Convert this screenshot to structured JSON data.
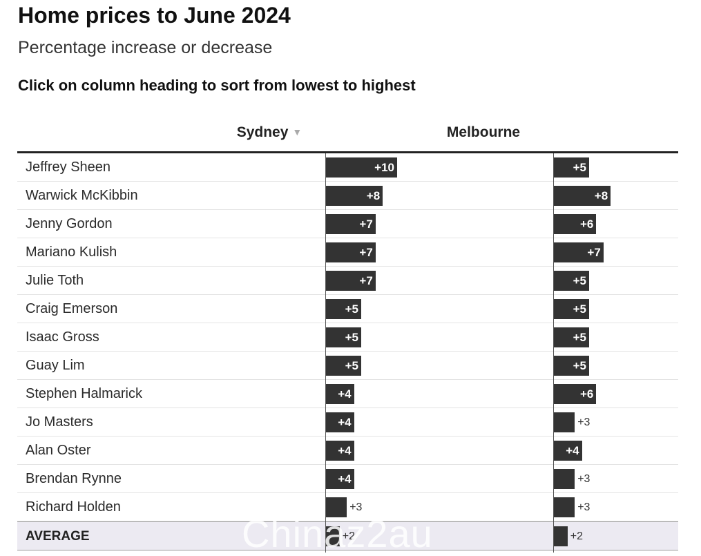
{
  "title": "Home prices to June 2024",
  "subtitle": "Percentage increase or decrease",
  "instruction": "Click on column heading to sort from lowest to highest",
  "columns": {
    "sydney": "Sydney",
    "melbourne": "Melbourne"
  },
  "watermark": "Chinaz2au",
  "chart_data": {
    "type": "table",
    "title": "Home prices to June 2024",
    "subtitle": "Percentage increase or decrease",
    "sorted_by": "Sydney",
    "columns": [
      "Sydney",
      "Melbourne"
    ],
    "rows": [
      {
        "name": "Jeffrey Sheen",
        "sydney": 10,
        "melbourne": 5,
        "sydney_label": "+10",
        "melbourne_label": "+5"
      },
      {
        "name": "Warwick McKibbin",
        "sydney": 8,
        "melbourne": 8,
        "sydney_label": "+8",
        "melbourne_label": "+8"
      },
      {
        "name": "Jenny Gordon",
        "sydney": 7,
        "melbourne": 6,
        "sydney_label": "+7",
        "melbourne_label": "+6"
      },
      {
        "name": "Mariano Kulish",
        "sydney": 7,
        "melbourne": 7,
        "sydney_label": "+7",
        "melbourne_label": "+7"
      },
      {
        "name": "Julie Toth",
        "sydney": 7,
        "melbourne": 5,
        "sydney_label": "+7",
        "melbourne_label": "+5"
      },
      {
        "name": "Craig Emerson",
        "sydney": 5,
        "melbourne": 5,
        "sydney_label": "+5",
        "melbourne_label": "+5"
      },
      {
        "name": "Isaac Gross",
        "sydney": 5,
        "melbourne": 5,
        "sydney_label": "+5",
        "melbourne_label": "+5"
      },
      {
        "name": "Guay Lim",
        "sydney": 5,
        "melbourne": 5,
        "sydney_label": "+5",
        "melbourne_label": "+5"
      },
      {
        "name": "Stephen Halmarick",
        "sydney": 4,
        "melbourne": 6,
        "sydney_label": "+4",
        "melbourne_label": "+6"
      },
      {
        "name": "Jo Masters",
        "sydney": 4,
        "melbourne": 3,
        "sydney_label": "+4",
        "melbourne_label": "+3"
      },
      {
        "name": "Alan Oster",
        "sydney": 4,
        "melbourne": 4,
        "sydney_label": "+4",
        "melbourne_label": "+4"
      },
      {
        "name": "Brendan Rynne",
        "sydney": 4,
        "melbourne": 3,
        "sydney_label": "+4",
        "melbourne_label": "+3"
      },
      {
        "name": "Richard Holden",
        "sydney": 3,
        "melbourne": 3,
        "sydney_label": "+3",
        "melbourne_label": "+3"
      }
    ],
    "average": {
      "name": "AVERAGE",
      "sydney": 2,
      "melbourne": 2,
      "sydney_label": "+2",
      "melbourne_label": "+2"
    },
    "bar_color": "#333333",
    "average_row_color": "#eceaf2"
  }
}
